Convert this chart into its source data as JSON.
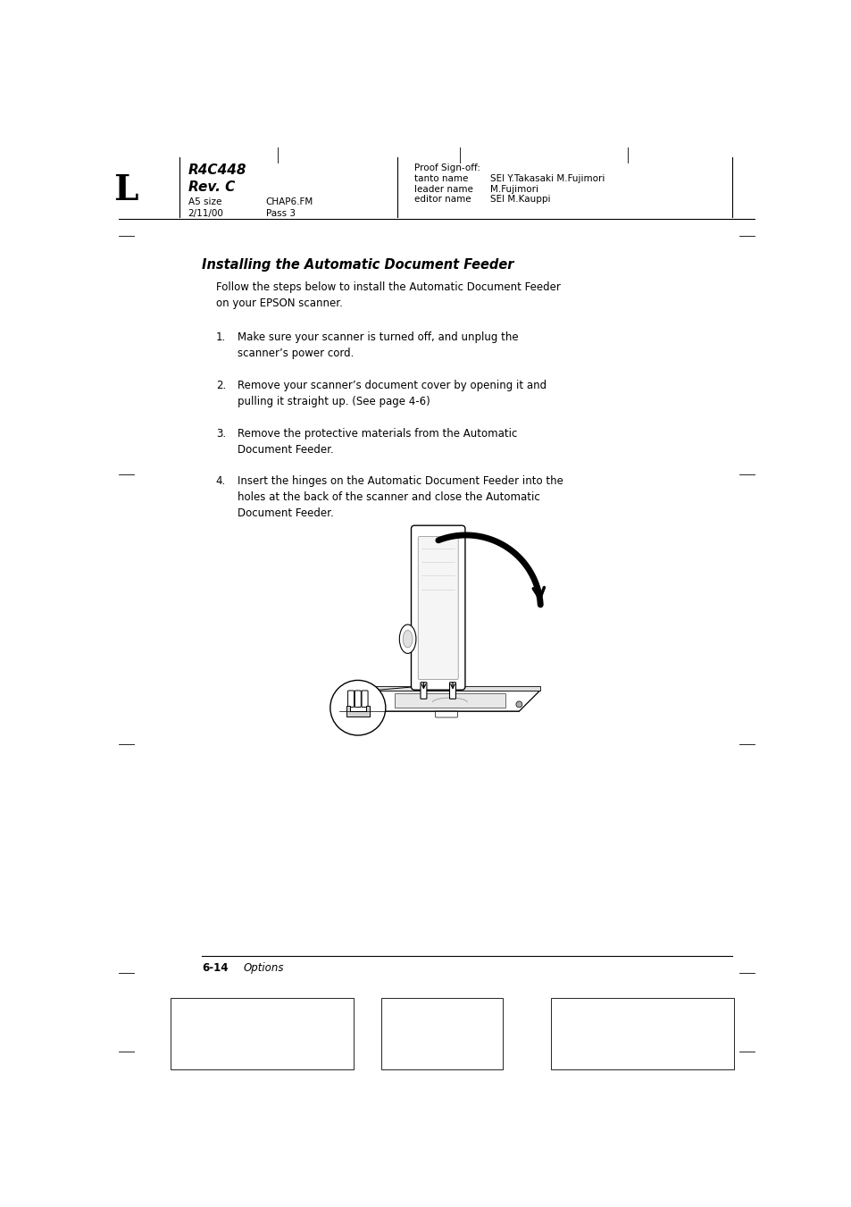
{
  "bg_color": "#ffffff",
  "page_width": 9.54,
  "page_height": 13.51,
  "header": {
    "letter": "L",
    "r4c448": "R4C448",
    "revc": "Rev. C",
    "a5_size": "A5 size",
    "date": "2/11/00",
    "chap": "CHAP6.FM",
    "pass": "Pass 3",
    "proof": "Proof Sign-off:",
    "tanto": "tanto name",
    "tanto_val": "SEI Y.Takasaki M.Fujimori",
    "leader": "leader name",
    "leader_val": "M.Fujimori",
    "editor": "editor name",
    "editor_val": "SEI M.Kauppi"
  },
  "section_title": "Installing the Automatic Document Feeder",
  "intro": "Follow the steps below to install the Automatic Document Feeder\non your EPSON scanner.",
  "steps": [
    {
      "num": "1.",
      "text": "Make sure your scanner is turned off, and unplug the\nscanner’s power cord."
    },
    {
      "num": "2.",
      "text": "Remove your scanner’s document cover by opening it and\npulling it straight up. (See page 4-6)"
    },
    {
      "num": "3.",
      "text": "Remove the protective materials from the Automatic\nDocument Feeder."
    },
    {
      "num": "4.",
      "text": "Insert the hinges on the Automatic Document Feeder into the\nholes at the back of the scanner and close the Automatic\nDocument Feeder."
    }
  ],
  "footer_bold": "6-14",
  "footer_text": "Options"
}
